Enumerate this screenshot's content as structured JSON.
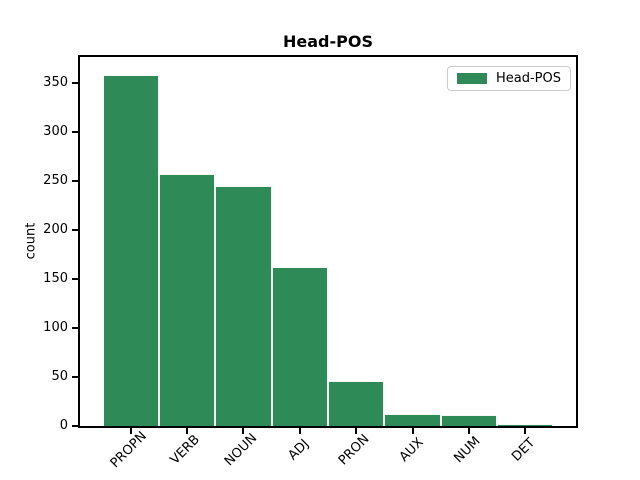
{
  "chart_data": {
    "type": "bar",
    "title": "Head-POS",
    "xlabel": "",
    "ylabel": "count",
    "categories": [
      "PROPN",
      "VERB",
      "NOUN",
      "ADJ",
      "PRON",
      "AUX",
      "NUM",
      "DET"
    ],
    "values": [
      358,
      257,
      245,
      162,
      46,
      12,
      11,
      2
    ],
    "series_name": "Head-POS",
    "yticks": [
      0,
      50,
      100,
      150,
      200,
      250,
      300,
      350
    ],
    "ylim": [
      0,
      376
    ],
    "bar_color": "#2e8b57",
    "bar_edge_color": "#ffffff",
    "grid": false,
    "legend_position": "upper right"
  },
  "legend": {
    "label": "Head-POS"
  }
}
